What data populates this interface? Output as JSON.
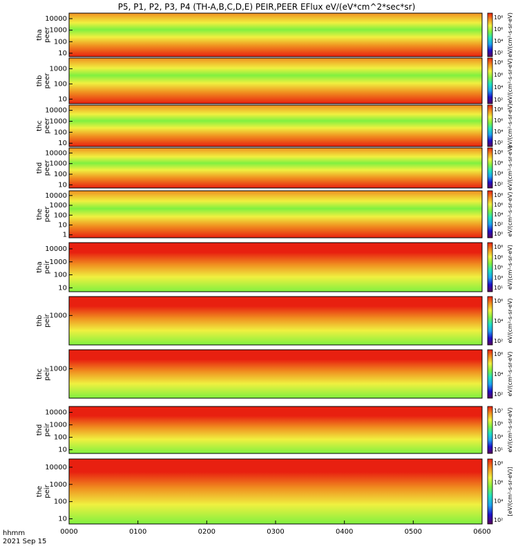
{
  "chart_data": {
    "type": "heatmap",
    "title": "P5, P1, P2, P3, P4 (TH-A,B,C,D,E) PEIR,PEER EFlux eV/(eV*cm^2*sec*sr)",
    "x_ticks": [
      "0000",
      "0100",
      "0200",
      "0300",
      "0400",
      "0500",
      "0600"
    ],
    "x_label_left": "hhmm",
    "date_label": "2021 Sep 15",
    "grid": false,
    "panels": [
      {
        "probe": "tha",
        "species": "peer",
        "yscale": "log",
        "yticks": [
          "10",
          "100",
          "1000",
          "10000"
        ],
        "ylim": [
          5,
          30000
        ],
        "colorbar_ticks": [
          "10^8",
          "10^6",
          "10^4",
          "10^2"
        ],
        "colorbar_label": "eV/(cm^2-s-sr-eV)"
      },
      {
        "probe": "thb",
        "species": "peer",
        "yscale": "log",
        "yticks": [
          "10",
          "100",
          "1000"
        ],
        "ylim": [
          5,
          5000
        ],
        "colorbar_ticks": [
          "10^8",
          "10^6",
          "10^4",
          "10^2"
        ],
        "colorbar_label": "eV/(cm^2-s-sr-eV)"
      },
      {
        "probe": "thc",
        "species": "peer",
        "yscale": "log",
        "yticks": [
          "10",
          "100",
          "1000",
          "10000"
        ],
        "ylim": [
          5,
          30000
        ],
        "colorbar_ticks": [
          "10^8",
          "10^6",
          "10^4",
          "10^2"
        ],
        "colorbar_label": "eV/(cm^2-s-sr-eV)"
      },
      {
        "probe": "thd",
        "species": "peer",
        "yscale": "log",
        "yticks": [
          "10",
          "100",
          "1000",
          "10000"
        ],
        "ylim": [
          5,
          30000
        ],
        "colorbar_ticks": [
          "10^8",
          "10^6",
          "10^4",
          "10^2"
        ],
        "colorbar_label": "eV/(cm^2-s-sr-eV)"
      },
      {
        "probe": "the",
        "species": "peer",
        "yscale": "log",
        "yticks": [
          "1",
          "10",
          "100",
          "1000",
          "10000"
        ],
        "ylim": [
          0.5,
          30000
        ],
        "colorbar_ticks": [
          "10^8",
          "10^6",
          "10^4",
          "10^2",
          "10^0"
        ],
        "colorbar_label": "eV/(cm^2-s-sr-eV)"
      },
      {
        "probe": "tha",
        "species": "peir",
        "yscale": "log",
        "yticks": [
          "10",
          "100",
          "1000",
          "10000"
        ],
        "ylim": [
          5,
          30000
        ],
        "colorbar_ticks": [
          "10^8",
          "10^6",
          "10^5",
          "10^3",
          "10^1"
        ],
        "colorbar_label": "eV/(cm^2-s-sr-eV)"
      },
      {
        "probe": "thb",
        "species": "peir",
        "yscale": "log",
        "yticks": [
          "1000"
        ],
        "ylim": [
          5,
          30000
        ],
        "colorbar_ticks": [
          "10^6",
          "10^4",
          "10^2"
        ],
        "colorbar_label": "eV/(cm^2-s-sr-eV)"
      },
      {
        "probe": "thc",
        "species": "peir",
        "yscale": "log",
        "yticks": [
          "1000"
        ],
        "ylim": [
          5,
          30000
        ],
        "colorbar_ticks": [
          "10^6",
          "10^4",
          "10^2"
        ],
        "colorbar_label": "eV/(cm^2-s-sr-eV)"
      },
      {
        "probe": "thd",
        "species": "peir",
        "yscale": "log",
        "yticks": [
          "10",
          "100",
          "1000",
          "10000"
        ],
        "ylim": [
          5,
          30000
        ],
        "colorbar_ticks": [
          "10^7",
          "10^5",
          "10^3",
          "10^1"
        ],
        "colorbar_label": "eV/(cm^2-s-sr-eV)"
      },
      {
        "probe": "the",
        "species": "peir",
        "yscale": "log",
        "yticks": [
          "10",
          "100",
          "1000",
          "10000"
        ],
        "ylim": [
          5,
          30000
        ],
        "colorbar_ticks": [
          "10^8",
          "10^6",
          "10^4",
          "10^2"
        ],
        "colorbar_label": "[eV/(cm^2-s-sr-eV)]"
      }
    ],
    "colormap": [
      "#5a005a",
      "#1e10c8",
      "#1ea0f0",
      "#20e0c0",
      "#80f040",
      "#f0f040",
      "#f09020",
      "#e82010"
    ]
  }
}
